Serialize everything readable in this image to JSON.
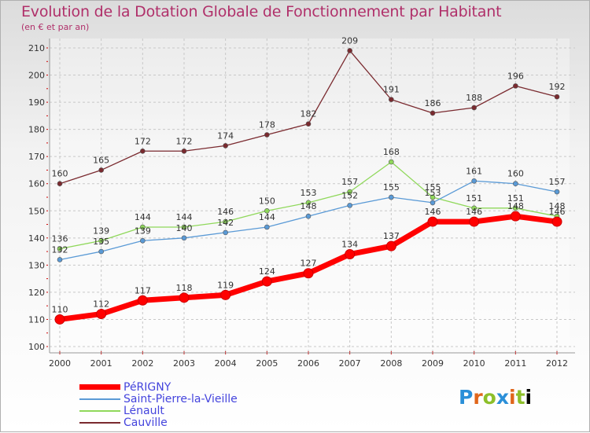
{
  "chart_data": {
    "type": "line",
    "title": "Evolution de la Dotation Globale de Fonctionnement par Habitant",
    "subtitle": "(en € et par an)",
    "xlabel": "",
    "ylabel": "",
    "x": [
      "2000",
      "2001",
      "2002",
      "2003",
      "2004",
      "2005",
      "2006",
      "2007",
      "2008",
      "2009",
      "2010",
      "2011",
      "2012"
    ],
    "ylim": [
      100,
      210
    ],
    "yticks": [
      100,
      110,
      120,
      130,
      140,
      150,
      160,
      170,
      180,
      190,
      200,
      210
    ],
    "grid": true,
    "legend_position": "bottom-left",
    "series": [
      {
        "name": "Cauville",
        "color": "#7a2a2f",
        "values": [
          160,
          165,
          172,
          172,
          174,
          178,
          182,
          209,
          191,
          186,
          188,
          196,
          192
        ]
      },
      {
        "name": "Lénault",
        "color": "#8fd85a",
        "values": [
          136,
          139,
          144,
          144,
          146,
          150,
          153,
          157,
          168,
          155,
          151,
          151,
          148
        ]
      },
      {
        "name": "Saint-Pierre-la-Vieille",
        "color": "#5a9ad6",
        "values": [
          132,
          135,
          139,
          140,
          142,
          144,
          148,
          152,
          155,
          153,
          161,
          160,
          157
        ]
      },
      {
        "name": "PéRIGNY",
        "color": "#ff0000",
        "values": [
          110,
          112,
          117,
          118,
          119,
          124,
          127,
          134,
          137,
          146,
          146,
          148,
          146
        ]
      }
    ]
  },
  "legend": {
    "items": [
      {
        "name": "PéRIGNY",
        "color": "#ff0000"
      },
      {
        "name": "Saint-Pierre-la-Vieille",
        "color": "#5a9ad6"
      },
      {
        "name": "Lénault",
        "color": "#8fd85a"
      },
      {
        "name": "Cauville",
        "color": "#7a2a2f"
      }
    ]
  },
  "logo": {
    "letters": [
      "P",
      "r",
      "o",
      "x",
      "i",
      "t",
      "i"
    ],
    "text": "Proxiti"
  }
}
